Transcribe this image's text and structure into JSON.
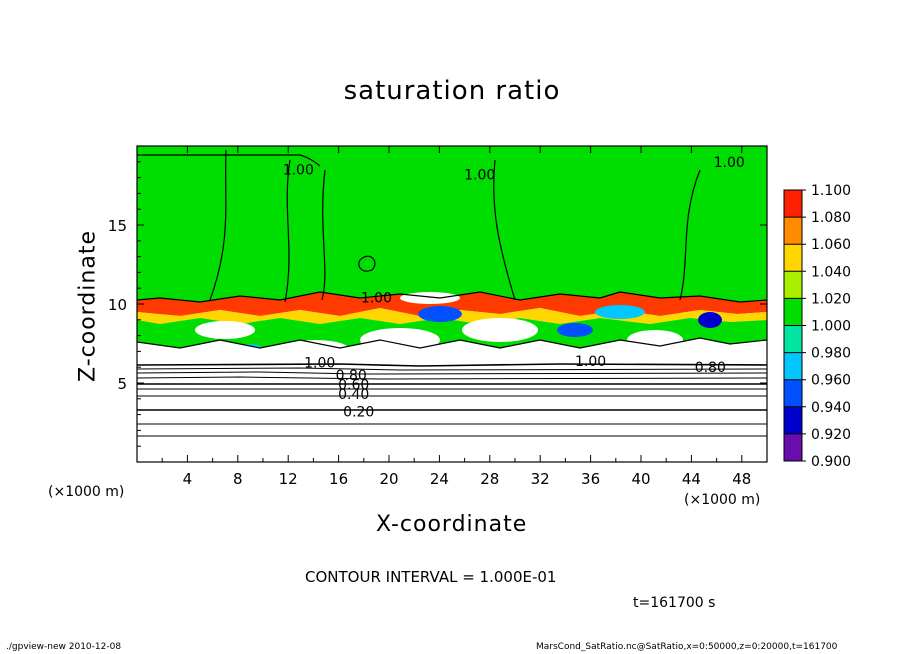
{
  "title": "saturation ratio",
  "chart_data": {
    "type": "heatmap",
    "title": "saturation ratio",
    "xlabel": "X-coordinate",
    "ylabel": "Z-coordinate",
    "x_unit_left": "(×1000 m)",
    "x_unit_right": "(×1000 m)",
    "xlim": [
      0,
      50
    ],
    "ylim": [
      0,
      20
    ],
    "xticks": [
      "4",
      "8",
      "12",
      "16",
      "20",
      "24",
      "28",
      "32",
      "36",
      "40",
      "44",
      "48"
    ],
    "yticks": [
      "5",
      "10",
      "15"
    ],
    "contour_interval": "CONTOUR INTERVAL = 1.000E-01",
    "time": "t=161700 s",
    "colorbar": {
      "levels": [
        "0.900",
        "0.920",
        "0.940",
        "0.960",
        "0.980",
        "1.000",
        "1.020",
        "1.040",
        "1.060",
        "1.080",
        "1.100"
      ],
      "colors": [
        "#6a0dad",
        "#0000cd",
        "#0050ff",
        "#00c8ff",
        "#00e6a0",
        "#00dd00",
        "#aaee00",
        "#ffd700",
        "#ff8c00",
        "#ff2000",
        "#ff7f7f"
      ]
    },
    "contour_labels": [
      {
        "text": "1.00",
        "x": 12.8,
        "z": 18.5
      },
      {
        "text": "1.00",
        "x": 27.2,
        "z": 18.2
      },
      {
        "text": "1.00",
        "x": 47.0,
        "z": 19.0
      },
      {
        "text": "1.00",
        "x": 19.0,
        "z": 10.4
      },
      {
        "text": "1.00",
        "x": 14.5,
        "z": 6.3
      },
      {
        "text": "1.00",
        "x": 36.0,
        "z": 6.4
      },
      {
        "text": "0.80",
        "x": 17.0,
        "z": 5.5
      },
      {
        "text": "0.60",
        "x": 17.2,
        "z": 4.9
      },
      {
        "text": "0.40",
        "x": 17.2,
        "z": 4.3
      },
      {
        "text": "0.20",
        "x": 17.6,
        "z": 3.2
      },
      {
        "text": "0.80",
        "x": 45.5,
        "z": 6.0
      }
    ],
    "field_description": {
      "upper": "saturation ratio ~1.00 (green) from z=10 to 20",
      "band": "mixed 0.92-1.10 cloud layer between z=6 and 10",
      "lower": "below saturation (<0.9, white) with contours 0.2-0.8 below z=6"
    }
  },
  "footer": {
    "left": "./gpview-new   2010-12-08",
    "right": "MarsCond_SatRatio.nc@SatRatio,x=0:50000,z=0:20000,t=161700"
  }
}
